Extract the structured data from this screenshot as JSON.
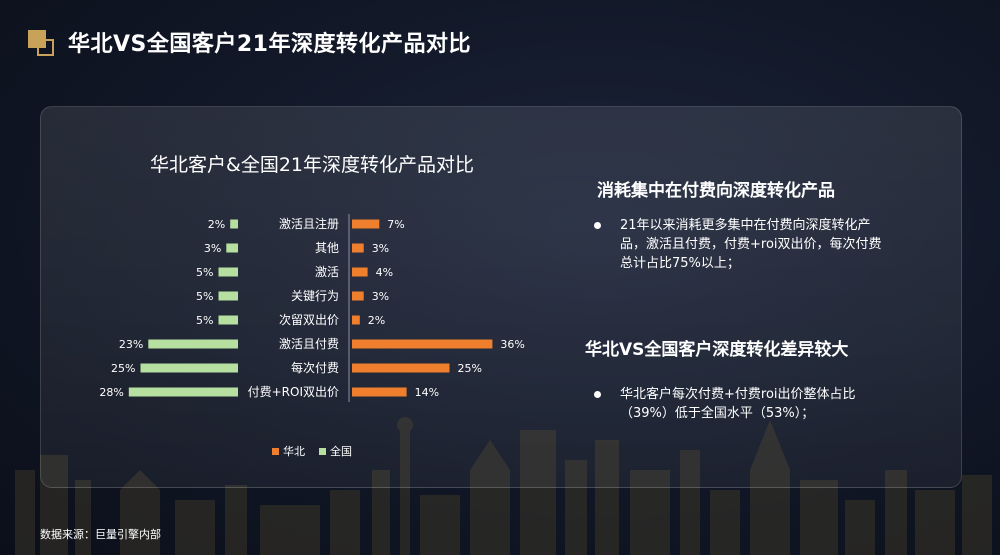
{
  "page": {
    "title": "华北VS全国客户21年深度转化产品对比",
    "source": "数据来源：巨量引擎内部"
  },
  "insights": [
    {
      "heading": "消耗集中在付费向深度转化产品",
      "bullet": "21年以来消耗更多集中在付费向深度转化产品，激活且付费，付费+roi双出价，每次付费总计占比75%以上；"
    },
    {
      "heading": "华北VS全国客户深度转化差异较大",
      "bullet": "华北客户每次付费+付费roi出价整体占比（39%）低于全国水平（53%）；"
    }
  ],
  "colors": {
    "huabei": "#f07f2d",
    "quanguo": "#b7dfa0",
    "accent": "#c9a25a"
  },
  "chart_data": {
    "type": "bar",
    "orientation": "horizontal-butterfly",
    "title": "华北客户&全国21年深度转化产品对比",
    "categories": [
      "激活且注册",
      "其他",
      "激活",
      "关键行为",
      "次留双出价",
      "激活且付费",
      "每次付费",
      "付费+ROI双出价"
    ],
    "series": [
      {
        "name": "华北",
        "values": [
          7,
          3,
          4,
          3,
          2,
          36,
          25,
          14
        ],
        "labels": [
          "7%",
          "3%",
          "4%",
          "3%",
          "2%",
          "36%",
          "25%",
          "14%"
        ]
      },
      {
        "name": "全国",
        "values": [
          2,
          3,
          5,
          5,
          5,
          23,
          25,
          28
        ],
        "labels": [
          "2%",
          "3%",
          "5%",
          "5%",
          "5%",
          "23%",
          "25%",
          "28%"
        ]
      }
    ],
    "unit": "%",
    "legend": "bottom"
  }
}
